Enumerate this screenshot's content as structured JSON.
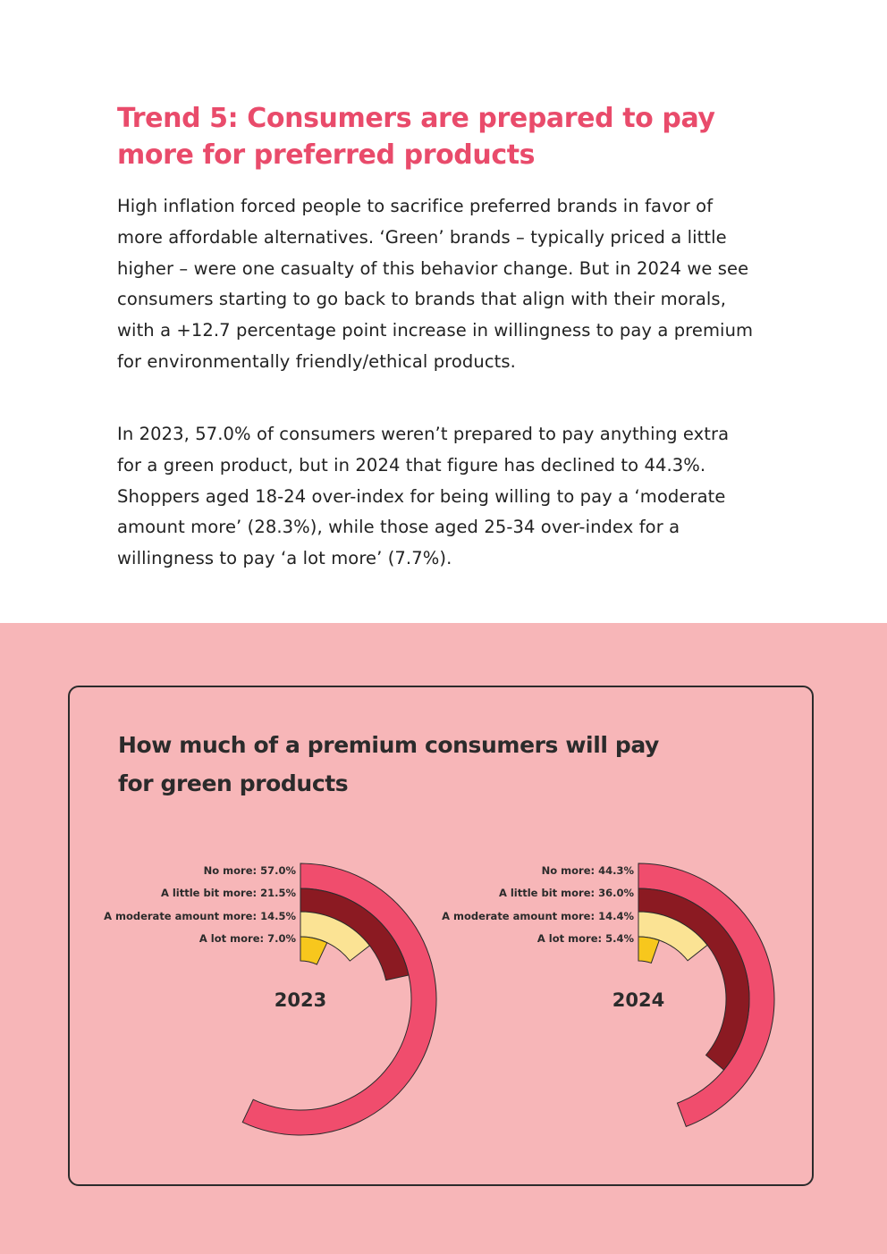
{
  "article": {
    "heading": "Trend 5: Consumers are prepared to pay more for preferred products",
    "paragraph1": "High inflation forced people to sacrifice preferred brands in favor of more affordable alternatives. ‘Green’ brands – typically priced a little higher – were one casualty of this behavior change. But in 2024 we see consumers starting to go back to brands that align with their morals, with a +12.7 percentage point increase in willingness to pay a premium for environmentally friendly/ethical products.",
    "paragraph2": "In 2023, 57.0% of consumers weren’t prepared to pay anything extra for a green product, but in 2024 that figure has declined to 44.3%. Shoppers aged 18-24 over-index for being willing to pay a ‘moderate amount more’ (28.3%), while those aged 25-34 over-index for a willingness to pay ‘a lot more’ (7.7%)."
  },
  "chart_data": {
    "type": "radial-bar",
    "title": "How much of a premium consumers will pay for green products",
    "scale_max_percent": 100,
    "categories": [
      "No more",
      "A little bit more",
      "A moderate amount more",
      "A lot more"
    ],
    "colors": [
      "#f04d6d",
      "#8b1a22",
      "#fbe394",
      "#f7c71d"
    ],
    "charts": [
      {
        "label": "2023",
        "values": [
          57.0,
          21.5,
          14.5,
          7.0
        ],
        "value_labels": [
          "57.0%",
          "21.5%",
          "14.5%",
          "7.0%"
        ]
      },
      {
        "label": "2024",
        "values": [
          44.3,
          36.0,
          14.4,
          5.4
        ],
        "value_labels": [
          "44.3%",
          "36.0%",
          "14.4%",
          "5.4%"
        ]
      }
    ]
  }
}
